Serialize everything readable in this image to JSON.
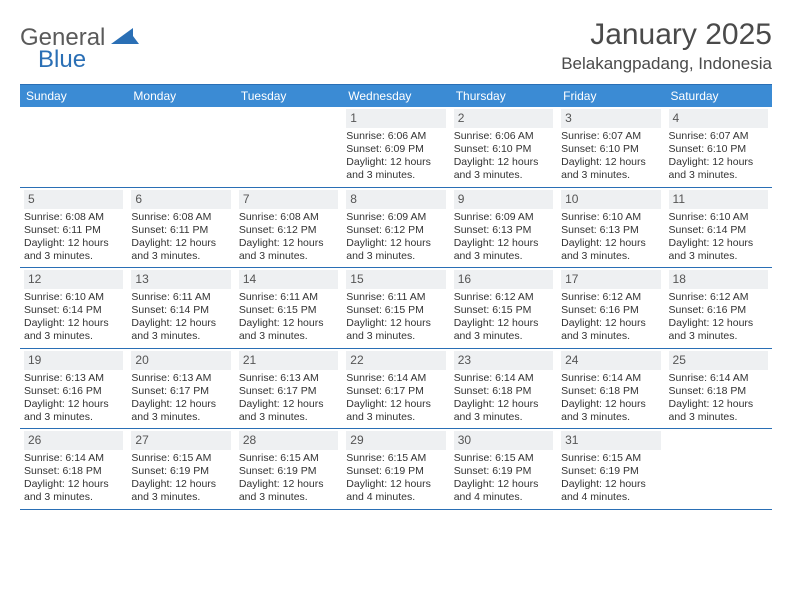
{
  "brand": {
    "general": "General",
    "blue": "Blue"
  },
  "title": "January 2025",
  "location": "Belakangpadang, Indonesia",
  "colors": {
    "header_bg": "#3b8bd4",
    "rule": "#2a6fb5",
    "daynum_bg": "#eef0f2",
    "text": "#333333",
    "muted": "#555555",
    "page_bg": "#ffffff"
  },
  "weekdays": [
    "Sunday",
    "Monday",
    "Tuesday",
    "Wednesday",
    "Thursday",
    "Friday",
    "Saturday"
  ],
  "weeks": [
    [
      null,
      null,
      null,
      {
        "n": "1",
        "sunrise": "Sunrise: 6:06 AM",
        "sunset": "Sunset: 6:09 PM",
        "day1": "Daylight: 12 hours",
        "day2": "and 3 minutes."
      },
      {
        "n": "2",
        "sunrise": "Sunrise: 6:06 AM",
        "sunset": "Sunset: 6:10 PM",
        "day1": "Daylight: 12 hours",
        "day2": "and 3 minutes."
      },
      {
        "n": "3",
        "sunrise": "Sunrise: 6:07 AM",
        "sunset": "Sunset: 6:10 PM",
        "day1": "Daylight: 12 hours",
        "day2": "and 3 minutes."
      },
      {
        "n": "4",
        "sunrise": "Sunrise: 6:07 AM",
        "sunset": "Sunset: 6:10 PM",
        "day1": "Daylight: 12 hours",
        "day2": "and 3 minutes."
      }
    ],
    [
      {
        "n": "5",
        "sunrise": "Sunrise: 6:08 AM",
        "sunset": "Sunset: 6:11 PM",
        "day1": "Daylight: 12 hours",
        "day2": "and 3 minutes."
      },
      {
        "n": "6",
        "sunrise": "Sunrise: 6:08 AM",
        "sunset": "Sunset: 6:11 PM",
        "day1": "Daylight: 12 hours",
        "day2": "and 3 minutes."
      },
      {
        "n": "7",
        "sunrise": "Sunrise: 6:08 AM",
        "sunset": "Sunset: 6:12 PM",
        "day1": "Daylight: 12 hours",
        "day2": "and 3 minutes."
      },
      {
        "n": "8",
        "sunrise": "Sunrise: 6:09 AM",
        "sunset": "Sunset: 6:12 PM",
        "day1": "Daylight: 12 hours",
        "day2": "and 3 minutes."
      },
      {
        "n": "9",
        "sunrise": "Sunrise: 6:09 AM",
        "sunset": "Sunset: 6:13 PM",
        "day1": "Daylight: 12 hours",
        "day2": "and 3 minutes."
      },
      {
        "n": "10",
        "sunrise": "Sunrise: 6:10 AM",
        "sunset": "Sunset: 6:13 PM",
        "day1": "Daylight: 12 hours",
        "day2": "and 3 minutes."
      },
      {
        "n": "11",
        "sunrise": "Sunrise: 6:10 AM",
        "sunset": "Sunset: 6:14 PM",
        "day1": "Daylight: 12 hours",
        "day2": "and 3 minutes."
      }
    ],
    [
      {
        "n": "12",
        "sunrise": "Sunrise: 6:10 AM",
        "sunset": "Sunset: 6:14 PM",
        "day1": "Daylight: 12 hours",
        "day2": "and 3 minutes."
      },
      {
        "n": "13",
        "sunrise": "Sunrise: 6:11 AM",
        "sunset": "Sunset: 6:14 PM",
        "day1": "Daylight: 12 hours",
        "day2": "and 3 minutes."
      },
      {
        "n": "14",
        "sunrise": "Sunrise: 6:11 AM",
        "sunset": "Sunset: 6:15 PM",
        "day1": "Daylight: 12 hours",
        "day2": "and 3 minutes."
      },
      {
        "n": "15",
        "sunrise": "Sunrise: 6:11 AM",
        "sunset": "Sunset: 6:15 PM",
        "day1": "Daylight: 12 hours",
        "day2": "and 3 minutes."
      },
      {
        "n": "16",
        "sunrise": "Sunrise: 6:12 AM",
        "sunset": "Sunset: 6:15 PM",
        "day1": "Daylight: 12 hours",
        "day2": "and 3 minutes."
      },
      {
        "n": "17",
        "sunrise": "Sunrise: 6:12 AM",
        "sunset": "Sunset: 6:16 PM",
        "day1": "Daylight: 12 hours",
        "day2": "and 3 minutes."
      },
      {
        "n": "18",
        "sunrise": "Sunrise: 6:12 AM",
        "sunset": "Sunset: 6:16 PM",
        "day1": "Daylight: 12 hours",
        "day2": "and 3 minutes."
      }
    ],
    [
      {
        "n": "19",
        "sunrise": "Sunrise: 6:13 AM",
        "sunset": "Sunset: 6:16 PM",
        "day1": "Daylight: 12 hours",
        "day2": "and 3 minutes."
      },
      {
        "n": "20",
        "sunrise": "Sunrise: 6:13 AM",
        "sunset": "Sunset: 6:17 PM",
        "day1": "Daylight: 12 hours",
        "day2": "and 3 minutes."
      },
      {
        "n": "21",
        "sunrise": "Sunrise: 6:13 AM",
        "sunset": "Sunset: 6:17 PM",
        "day1": "Daylight: 12 hours",
        "day2": "and 3 minutes."
      },
      {
        "n": "22",
        "sunrise": "Sunrise: 6:14 AM",
        "sunset": "Sunset: 6:17 PM",
        "day1": "Daylight: 12 hours",
        "day2": "and 3 minutes."
      },
      {
        "n": "23",
        "sunrise": "Sunrise: 6:14 AM",
        "sunset": "Sunset: 6:18 PM",
        "day1": "Daylight: 12 hours",
        "day2": "and 3 minutes."
      },
      {
        "n": "24",
        "sunrise": "Sunrise: 6:14 AM",
        "sunset": "Sunset: 6:18 PM",
        "day1": "Daylight: 12 hours",
        "day2": "and 3 minutes."
      },
      {
        "n": "25",
        "sunrise": "Sunrise: 6:14 AM",
        "sunset": "Sunset: 6:18 PM",
        "day1": "Daylight: 12 hours",
        "day2": "and 3 minutes."
      }
    ],
    [
      {
        "n": "26",
        "sunrise": "Sunrise: 6:14 AM",
        "sunset": "Sunset: 6:18 PM",
        "day1": "Daylight: 12 hours",
        "day2": "and 3 minutes."
      },
      {
        "n": "27",
        "sunrise": "Sunrise: 6:15 AM",
        "sunset": "Sunset: 6:19 PM",
        "day1": "Daylight: 12 hours",
        "day2": "and 3 minutes."
      },
      {
        "n": "28",
        "sunrise": "Sunrise: 6:15 AM",
        "sunset": "Sunset: 6:19 PM",
        "day1": "Daylight: 12 hours",
        "day2": "and 3 minutes."
      },
      {
        "n": "29",
        "sunrise": "Sunrise: 6:15 AM",
        "sunset": "Sunset: 6:19 PM",
        "day1": "Daylight: 12 hours",
        "day2": "and 4 minutes."
      },
      {
        "n": "30",
        "sunrise": "Sunrise: 6:15 AM",
        "sunset": "Sunset: 6:19 PM",
        "day1": "Daylight: 12 hours",
        "day2": "and 4 minutes."
      },
      {
        "n": "31",
        "sunrise": "Sunrise: 6:15 AM",
        "sunset": "Sunset: 6:19 PM",
        "day1": "Daylight: 12 hours",
        "day2": "and 4 minutes."
      },
      null
    ]
  ]
}
